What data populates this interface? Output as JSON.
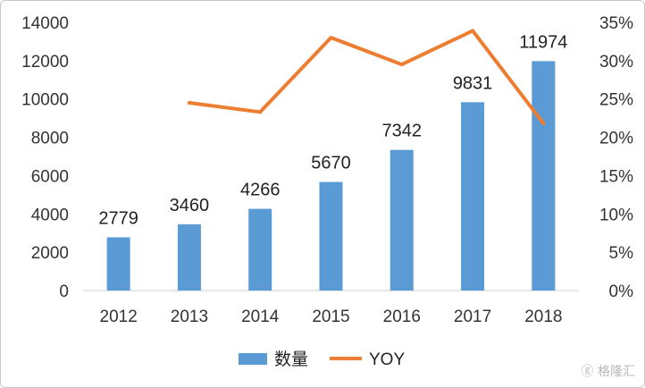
{
  "chart_data": {
    "type": "bar",
    "categories": [
      "2012",
      "2013",
      "2014",
      "2015",
      "2016",
      "2017",
      "2018"
    ],
    "series": [
      {
        "name": "数量",
        "type": "bar",
        "axis": "left",
        "color": "#5b9bd5",
        "values": [
          2779,
          3460,
          4266,
          5670,
          7342,
          9831,
          11974
        ],
        "data_labels": [
          "2779",
          "3460",
          "4266",
          "5670",
          "7342",
          "9831",
          "11974"
        ]
      },
      {
        "name": "YOY",
        "type": "line",
        "axis": "right",
        "color": "#ed7d31",
        "values": [
          null,
          24.5,
          23.3,
          33.0,
          29.5,
          33.9,
          21.8
        ]
      }
    ],
    "y_left": {
      "ylim": [
        0,
        14000
      ],
      "ticks": [
        "0",
        "2000",
        "4000",
        "6000",
        "8000",
        "10000",
        "12000",
        "14000"
      ]
    },
    "y_right": {
      "ylim": [
        0,
        35
      ],
      "ticks": [
        "0%",
        "5%",
        "10%",
        "15%",
        "20%",
        "25%",
        "30%",
        "35%"
      ]
    },
    "legend_placement": "bottom-center",
    "grid": false
  },
  "watermark": "格隆汇"
}
